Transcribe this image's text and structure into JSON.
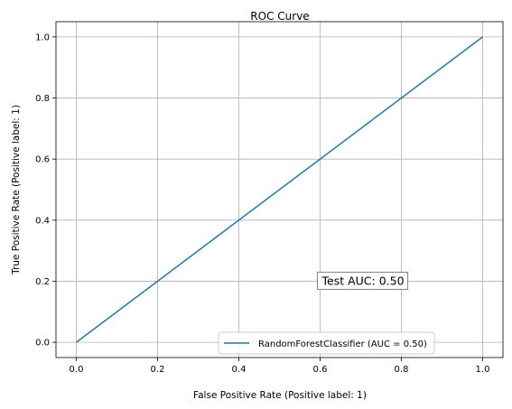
{
  "chart_data": {
    "type": "line",
    "title": "ROC Curve",
    "xlabel": "False Positive Rate (Positive label: 1)",
    "ylabel": "True Positive Rate (Positive label: 1)",
    "xlim": [
      -0.05,
      1.05
    ],
    "ylim": [
      -0.05,
      1.05
    ],
    "xticks": [
      "0.0",
      "0.2",
      "0.4",
      "0.6",
      "0.8",
      "1.0"
    ],
    "yticks": [
      "0.0",
      "0.2",
      "0.4",
      "0.6",
      "0.8",
      "1.0"
    ],
    "grid": true,
    "legend_position": "lower-right",
    "series": [
      {
        "name": "RandomForestClassifier (AUC = 0.50)",
        "x": [
          0.0,
          1.0
        ],
        "y": [
          0.0,
          1.0
        ],
        "color": "#1f77b4"
      }
    ],
    "annotations": [
      {
        "text": "Test AUC: 0.50",
        "x": 0.6,
        "y": 0.2
      }
    ]
  }
}
